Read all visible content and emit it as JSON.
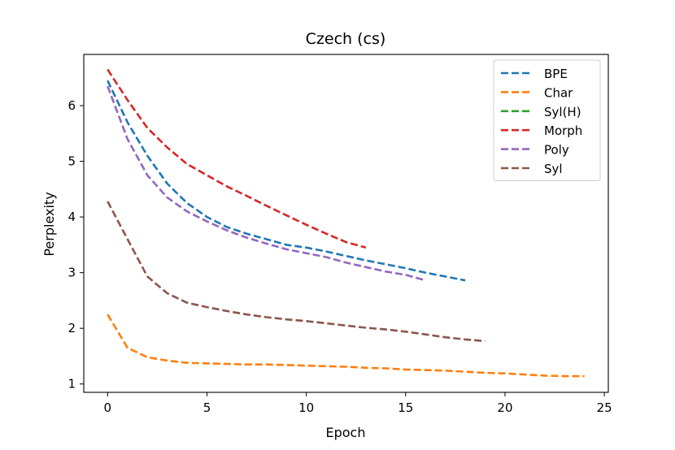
{
  "chart_data": {
    "type": "line",
    "title": "Czech (cs)",
    "xlabel": "Epoch",
    "ylabel": "Perplexity",
    "xlim": [
      -1.2,
      25.2
    ],
    "ylim": [
      0.85,
      6.92
    ],
    "xticks": [
      0,
      5,
      10,
      15,
      20,
      25
    ],
    "yticks": [
      1,
      2,
      3,
      4,
      5,
      6
    ],
    "grid": false,
    "legend_position": "upper right",
    "line_style": "dashed",
    "series": [
      {
        "name": "BPE",
        "color": "#1f77b4",
        "x": [
          0,
          1,
          2,
          3,
          4,
          5,
          6,
          7,
          8,
          9,
          10,
          11,
          12,
          13,
          14,
          15,
          16,
          17,
          18
        ],
        "y": [
          6.45,
          5.7,
          5.1,
          4.6,
          4.25,
          4.0,
          3.82,
          3.7,
          3.6,
          3.5,
          3.45,
          3.38,
          3.3,
          3.22,
          3.15,
          3.08,
          3.0,
          2.93,
          2.86
        ]
      },
      {
        "name": "Char",
        "color": "#ff7f0e",
        "x": [
          0,
          1,
          2,
          3,
          4,
          5,
          6,
          7,
          8,
          9,
          10,
          11,
          12,
          13,
          14,
          15,
          16,
          17,
          18,
          19,
          20,
          21,
          22,
          23,
          24
        ],
        "y": [
          2.25,
          1.65,
          1.48,
          1.42,
          1.38,
          1.37,
          1.36,
          1.35,
          1.35,
          1.34,
          1.33,
          1.32,
          1.31,
          1.29,
          1.28,
          1.26,
          1.25,
          1.24,
          1.22,
          1.2,
          1.19,
          1.17,
          1.15,
          1.14,
          1.14
        ]
      },
      {
        "name": "Syl(H)",
        "color": "#2ca02c",
        "x": [],
        "y": []
      },
      {
        "name": "Morph",
        "color": "#d62728",
        "x": [
          0,
          1,
          2,
          3,
          4,
          5,
          6,
          7,
          8,
          9,
          10,
          11,
          12,
          13
        ],
        "y": [
          6.65,
          6.1,
          5.6,
          5.25,
          4.95,
          4.75,
          4.55,
          4.38,
          4.2,
          4.03,
          3.86,
          3.7,
          3.55,
          3.45
        ]
      },
      {
        "name": "Poly",
        "color": "#9467bd",
        "x": [
          0,
          1,
          2,
          3,
          4,
          5,
          6,
          7,
          8,
          9,
          10,
          11,
          12,
          13,
          14,
          15,
          16
        ],
        "y": [
          6.35,
          5.4,
          4.75,
          4.35,
          4.1,
          3.92,
          3.76,
          3.63,
          3.52,
          3.42,
          3.35,
          3.28,
          3.18,
          3.1,
          3.02,
          2.96,
          2.86
        ]
      },
      {
        "name": "Syl",
        "color": "#8c564b",
        "x": [
          0,
          1,
          2,
          3,
          4,
          5,
          6,
          7,
          8,
          9,
          10,
          11,
          12,
          13,
          14,
          15,
          16,
          17,
          18,
          19
        ],
        "y": [
          4.28,
          3.6,
          2.93,
          2.63,
          2.46,
          2.38,
          2.31,
          2.25,
          2.2,
          2.16,
          2.13,
          2.09,
          2.05,
          2.01,
          1.98,
          1.94,
          1.89,
          1.84,
          1.8,
          1.77
        ]
      }
    ]
  }
}
